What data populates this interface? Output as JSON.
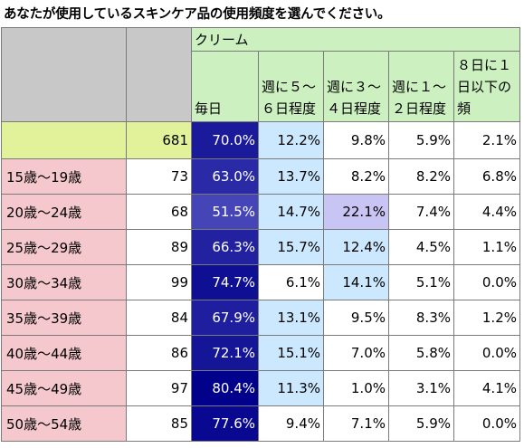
{
  "title": "あなたが使用しているスキンケア品の使用頻度を選んでください。",
  "group_label": "クリーム",
  "column_headers": [
    "毎日",
    "週に５～６日程度",
    "週に３～４日程度",
    "週に１～２日程度",
    "８日に１日以下の頻"
  ],
  "total_row": {
    "label": "",
    "n": "681",
    "values": [
      "70.0%",
      "12.2%",
      "9.8%",
      "5.9%",
      "2.1%"
    ]
  },
  "rows": [
    {
      "label": "15歳～19歳",
      "n": "73",
      "values": [
        "63.0%",
        "13.7%",
        "8.2%",
        "8.2%",
        "6.8%"
      ]
    },
    {
      "label": "20歳～24歳",
      "n": "68",
      "values": [
        "51.5%",
        "14.7%",
        "22.1%",
        "7.4%",
        "4.4%"
      ]
    },
    {
      "label": "25歳～29歳",
      "n": "89",
      "values": [
        "66.3%",
        "15.7%",
        "12.4%",
        "4.5%",
        "1.1%"
      ]
    },
    {
      "label": "30歳～34歳",
      "n": "99",
      "values": [
        "74.7%",
        "6.1%",
        "14.1%",
        "5.1%",
        "0.0%"
      ]
    },
    {
      "label": "35歳～39歳",
      "n": "84",
      "values": [
        "67.9%",
        "13.1%",
        "9.5%",
        "8.3%",
        "1.2%"
      ]
    },
    {
      "label": "40歳～44歳",
      "n": "86",
      "values": [
        "72.1%",
        "15.1%",
        "7.0%",
        "5.8%",
        "0.0%"
      ]
    },
    {
      "label": "45歳～49歳",
      "n": "97",
      "values": [
        "80.4%",
        "11.3%",
        "1.0%",
        "3.1%",
        "4.1%"
      ]
    },
    {
      "label": "50歳～54歳",
      "n": "85",
      "values": [
        "77.6%",
        "9.4%",
        "7.1%",
        "5.9%",
        "0.0%"
      ]
    }
  ],
  "chart_data": {
    "type": "heatmap",
    "title": "あなたが使用しているスキンケア品の使用頻度を選んでください。",
    "group": "クリーム",
    "columns": [
      "毎日",
      "週に５～６日程度",
      "週に３～４日程度",
      "週に１～２日程度",
      "８日に１日以下の頻"
    ],
    "row_labels": [
      "",
      "15歳～19歳",
      "20歳～24歳",
      "25歳～29歳",
      "30歳～34歳",
      "35歳～39歳",
      "40歳～44歳",
      "45歳～49歳",
      "50歳～54歳"
    ],
    "n": [
      681,
      73,
      68,
      89,
      99,
      84,
      86,
      97,
      85
    ],
    "values": [
      [
        70.0,
        12.2,
        9.8,
        5.9,
        2.1
      ],
      [
        63.0,
        13.7,
        8.2,
        8.2,
        6.8
      ],
      [
        51.5,
        14.7,
        22.1,
        7.4,
        4.4
      ],
      [
        66.3,
        15.7,
        12.4,
        4.5,
        1.1
      ],
      [
        74.7,
        6.1,
        14.1,
        5.1,
        0.0
      ],
      [
        67.9,
        13.1,
        9.5,
        8.3,
        1.2
      ],
      [
        72.1,
        15.1,
        7.0,
        5.8,
        0.0
      ],
      [
        80.4,
        11.3,
        1.0,
        3.1,
        4.1
      ],
      [
        77.6,
        9.4,
        7.1,
        5.9,
        0.0
      ]
    ],
    "colors": {
      "label_bg": "#f4c8cc",
      "total_bg": "#e2f29a",
      "header_bg": "#ccf0c0",
      "corner_bg": "#c8c8c8",
      "heat_high": "#00008b",
      "heat_mid": "#cce8ff"
    }
  }
}
